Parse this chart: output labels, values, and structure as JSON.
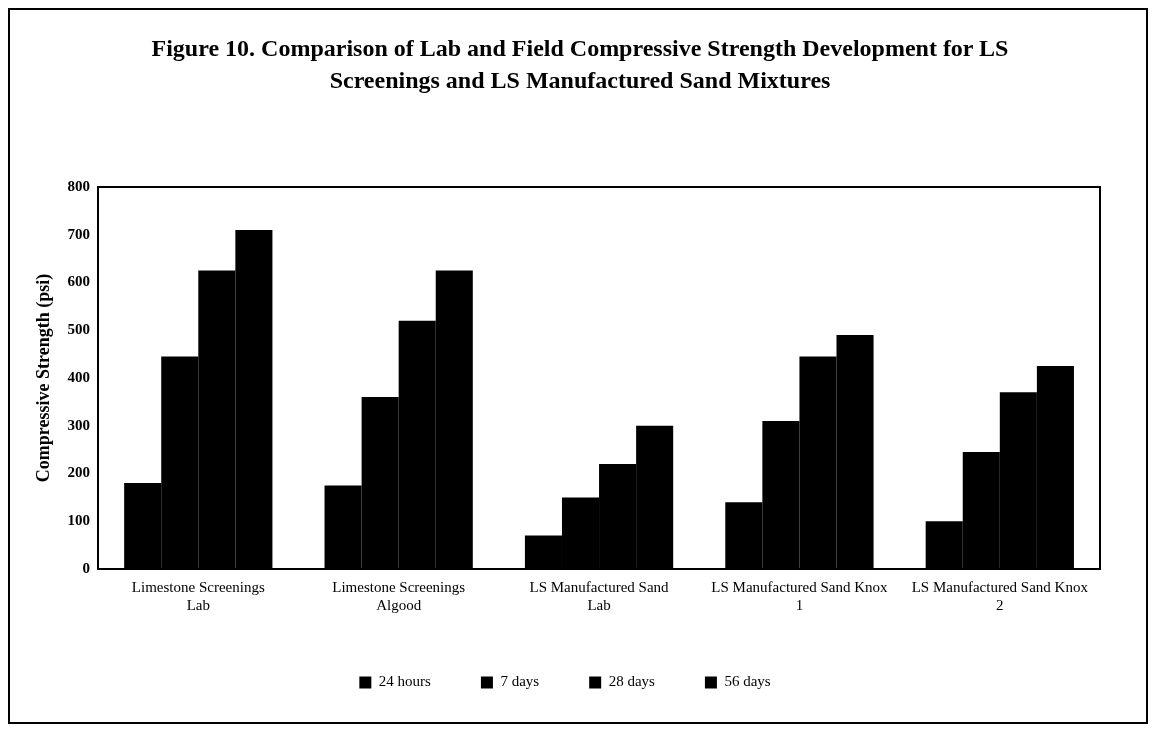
{
  "chart_data": {
    "type": "bar",
    "title": "Figure 10. Comparison of Lab and Field Compressive Strength Development for LS Screenings and LS Manufactured Sand Mixtures",
    "ylabel": "Compressive Strength (psi)",
    "categories": [
      "Limestone Screenings Lab",
      "Limestone Screenings Algood",
      "LS Manufactured Sand Lab",
      "LS Manufactured Sand Knox 1",
      "LS Manufactured Sand Knox 2"
    ],
    "series": [
      {
        "name": "24 hours",
        "color": "#000000",
        "values": [
          180,
          175,
          70,
          140,
          100
        ]
      },
      {
        "name": "7 days",
        "color": "#000000",
        "values": [
          445,
          360,
          150,
          310,
          245
        ]
      },
      {
        "name": "28 days",
        "color": "#000000",
        "values": [
          625,
          520,
          220,
          445,
          370
        ]
      },
      {
        "name": "56 days",
        "color": "#000000",
        "values": [
          710,
          625,
          300,
          490,
          425
        ]
      }
    ],
    "ylim": [
      0,
      800
    ],
    "yticks": [
      0,
      100,
      200,
      300,
      400,
      500,
      600,
      700,
      800
    ],
    "grid": false,
    "legend": "bottom"
  }
}
